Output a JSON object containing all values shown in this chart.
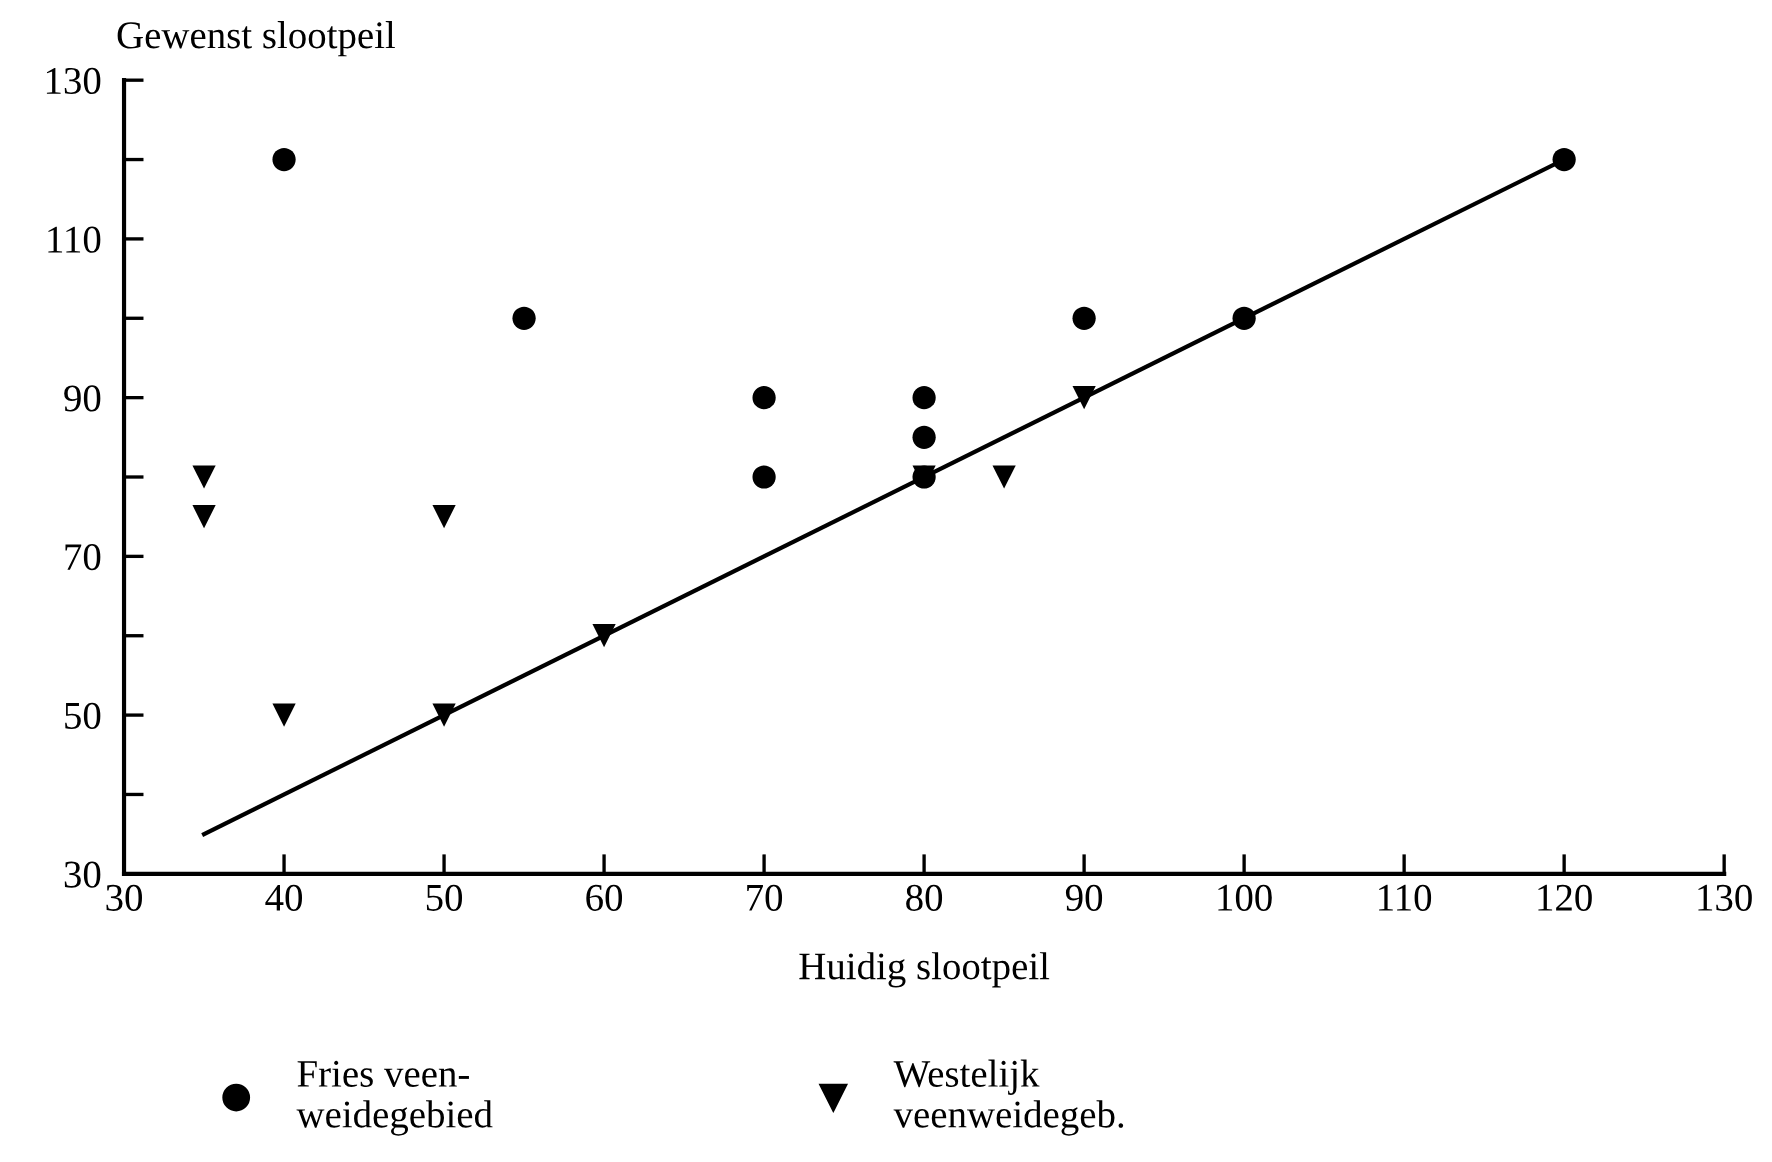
{
  "chart_data": {
    "type": "scatter",
    "xlabel": "Huidig slootpeil",
    "ylabel": "Gewenst slootpeil",
    "xlim": [
      30,
      130
    ],
    "ylim": [
      30,
      130
    ],
    "xticks": [
      30,
      40,
      50,
      60,
      70,
      80,
      90,
      100,
      110,
      120,
      130
    ],
    "yticks": [
      30,
      {
        "value": 40,
        "label": null
      },
      50,
      {
        "value": 60,
        "label": null
      },
      70,
      {
        "value": 80,
        "label": null
      },
      90,
      {
        "value": 100,
        "label": null
      },
      110,
      {
        "value": 120,
        "label": null
      },
      130
    ],
    "grid": false,
    "legend": "bottom",
    "series": [
      {
        "name": "Fries veen-\nweidegebied",
        "color": "#000000",
        "marker": "circle",
        "x": [
          40,
          55,
          70,
          70,
          80,
          80,
          80,
          90,
          100,
          120
        ],
        "values": [
          120,
          100,
          90,
          80,
          90,
          85,
          80,
          100,
          100,
          120
        ]
      },
      {
        "name": "Westelijk\nveenweidegeb.",
        "color": "#000000",
        "marker": "triangle",
        "x": [
          35,
          35,
          40,
          50,
          50,
          60,
          80,
          85,
          90
        ],
        "values": [
          80,
          75,
          50,
          75,
          50,
          60,
          80,
          80,
          90
        ]
      },
      {
        "type": "line",
        "color": "#000000",
        "marker": "none",
        "line_style": "solid",
        "x": [
          35,
          120
        ],
        "values": [
          35,
          120
        ]
      }
    ]
  }
}
